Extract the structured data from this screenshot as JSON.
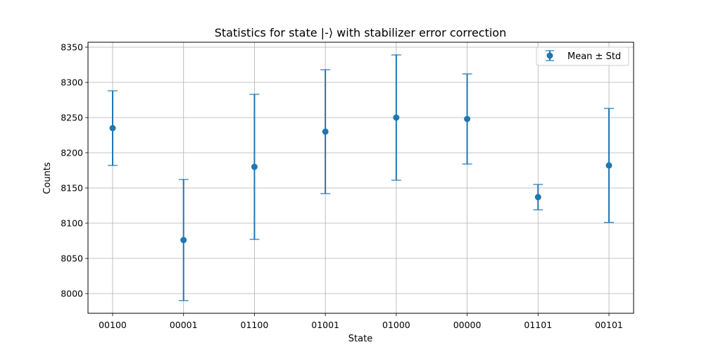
{
  "chart_data": {
    "type": "scatter",
    "title": "Statistics for state |-⟩ with stabilizer error correction",
    "xlabel": "State",
    "ylabel": "Counts",
    "categories": [
      "00100",
      "00001",
      "01100",
      "01001",
      "01000",
      "00000",
      "01101",
      "00101"
    ],
    "series": [
      {
        "name": "Mean ± Std",
        "values": [
          8235,
          8076,
          8180,
          8230,
          8250,
          8248,
          8137,
          8182
        ],
        "errors": [
          53,
          86,
          103,
          88,
          89,
          64,
          18,
          81
        ]
      }
    ],
    "ylim": [
      7972,
      8357
    ],
    "yticks": [
      8000,
      8050,
      8100,
      8150,
      8200,
      8250,
      8300,
      8350
    ],
    "grid": true,
    "legend_position": "top-right",
    "color": "#1f77b4"
  }
}
